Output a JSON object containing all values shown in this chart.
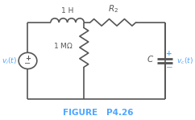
{
  "bg_color": "#ffffff",
  "fig_width": 2.42,
  "fig_height": 1.49,
  "dpi": 100,
  "title": "FIGURE   P4.26",
  "title_color": "#4da6ff",
  "title_fontsize": 7.5,
  "line_color": "#555555",
  "line_width": 1.2,
  "label_color": "#4da6ff",
  "label_fontsize": 6.5,
  "symbol_fontsize": 7.5,
  "resistor_label_fontsize": 6.5,
  "plus_minus_fontsize": 6.0
}
